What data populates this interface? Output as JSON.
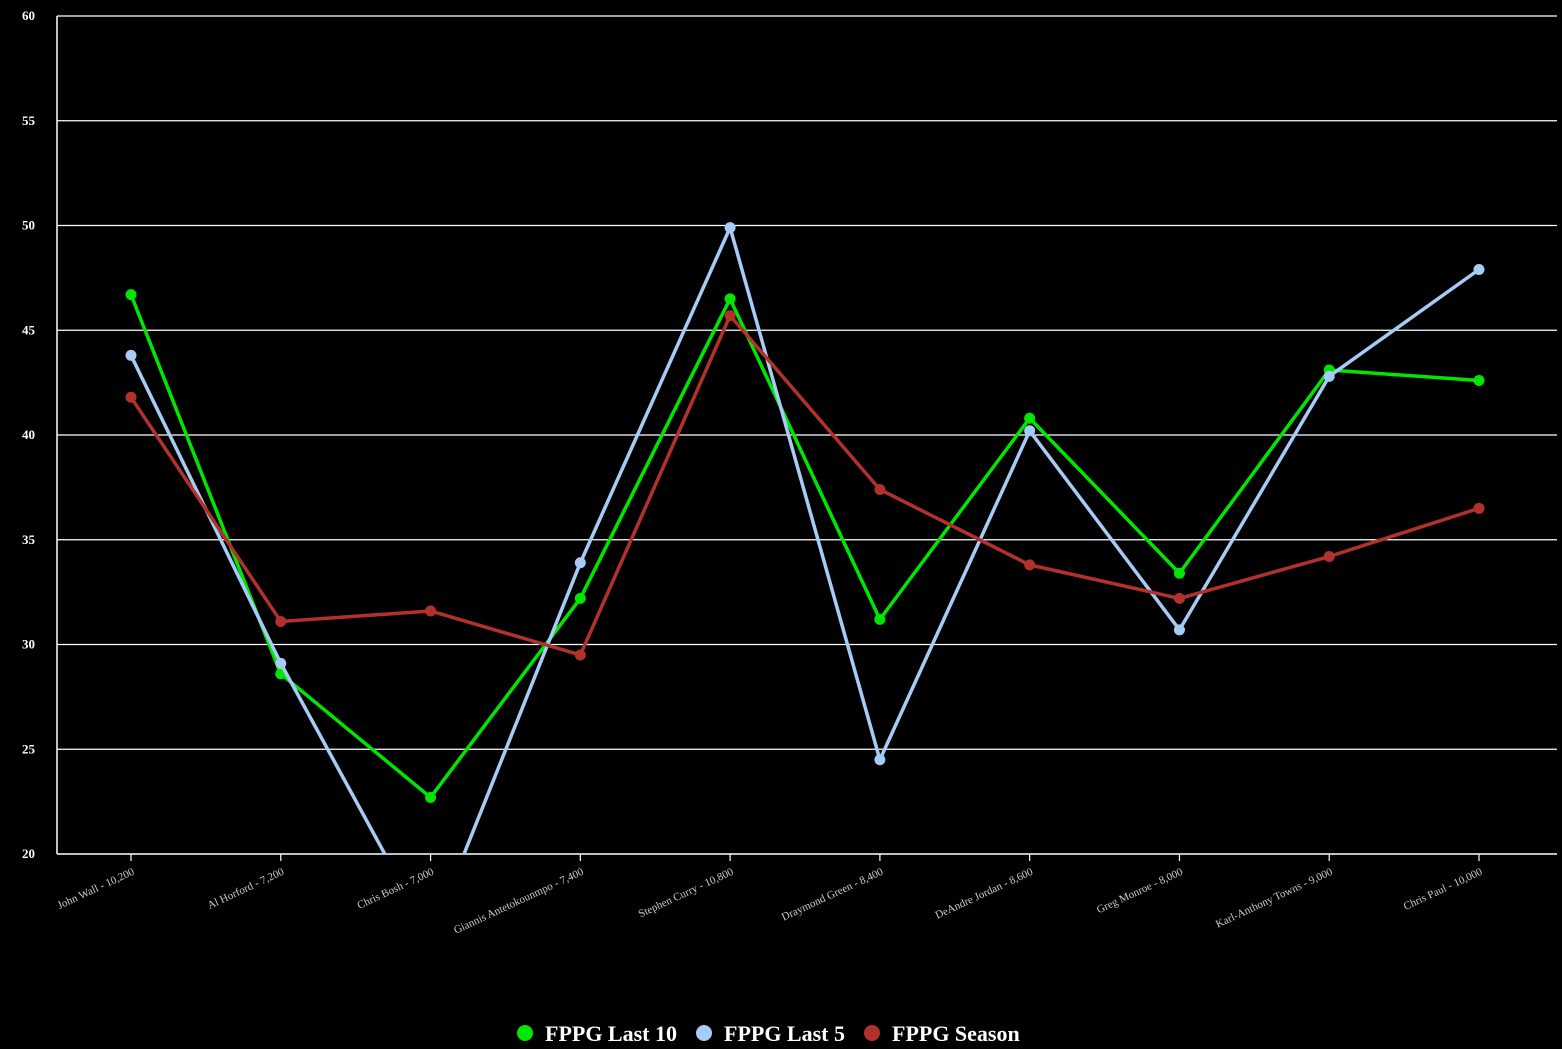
{
  "chart_data": {
    "type": "line",
    "title": "",
    "xlabel": "",
    "ylabel": "",
    "ylim": [
      20,
      60
    ],
    "yticks": [
      20,
      25,
      30,
      35,
      40,
      45,
      50,
      55,
      60
    ],
    "grid": true,
    "legend_position": "bottom-center",
    "categories": [
      "John Wall - 10,200",
      "Al Horford - 7,200",
      "Chris Bosh - 7,000",
      "Giannis Antetokounmpo - 7,400",
      "Stephen Curry - 10,800",
      "Draymond Green - 8,400",
      "DeAndre Jordan - 8,600",
      "Greg Monroe - 8,000",
      "Karl-Anthony Towns - 9,000",
      "Chris Paul - 10,000"
    ],
    "series": [
      {
        "name": "FPPG Last 10",
        "color": "#00e600",
        "values": [
          46.7,
          28.6,
          22.7,
          32.2,
          46.5,
          31.2,
          40.8,
          33.4,
          43.1,
          42.6
        ]
      },
      {
        "name": "FPPG Last 5",
        "color": "#a6ccf5",
        "values": [
          43.8,
          29.1,
          16.0,
          33.9,
          49.9,
          24.5,
          40.2,
          30.7,
          42.8,
          47.9
        ]
      },
      {
        "name": "FPPG Season",
        "color": "#b3312c",
        "values": [
          41.8,
          31.1,
          31.6,
          29.5,
          45.7,
          37.4,
          33.8,
          32.2,
          34.2,
          36.5
        ]
      }
    ]
  }
}
